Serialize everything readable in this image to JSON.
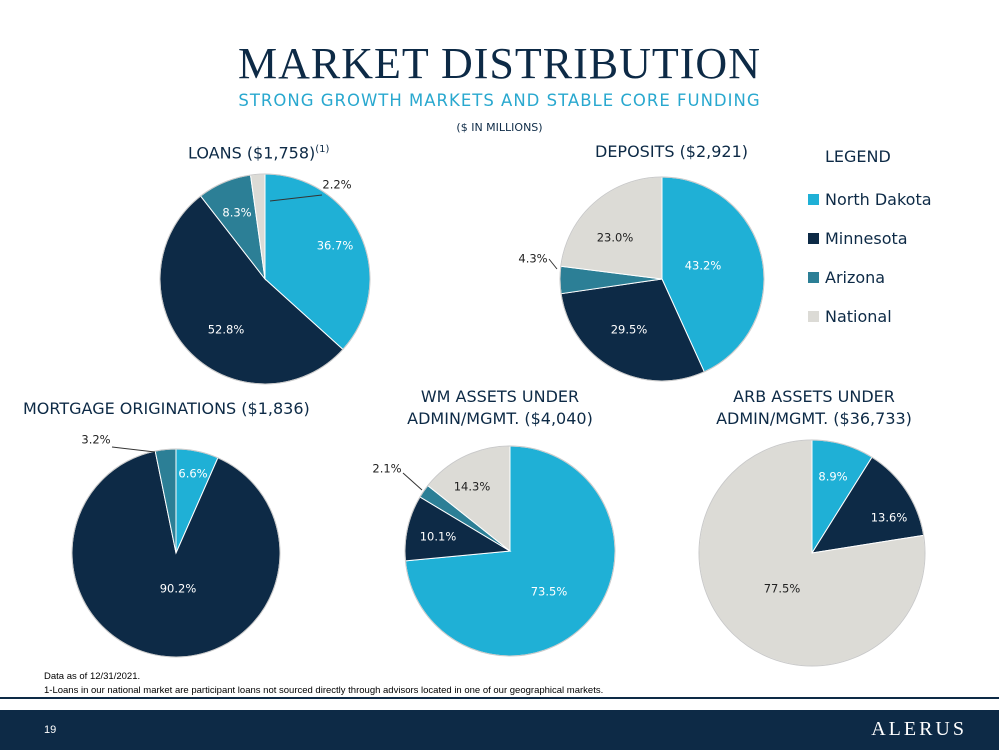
{
  "title": "MARKET DISTRIBUTION",
  "subtitle": "STRONG GROWTH MARKETS AND STABLE CORE FUNDING",
  "units": "($ IN MILLIONS)",
  "legend": {
    "title": "LEGEND",
    "items": [
      {
        "label": "North Dakota",
        "color": "#1fb0d6"
      },
      {
        "label": "Minnesota",
        "color": "#0d2a46"
      },
      {
        "label": "Arizona",
        "color": "#2c7f96"
      },
      {
        "label": "National",
        "color": "#dcdbd6"
      }
    ]
  },
  "chart_data": [
    {
      "type": "pie",
      "title": "LOANS ($1,758)",
      "title_note": "(1)",
      "categories": [
        "North Dakota",
        "Minnesota",
        "Arizona",
        "National"
      ],
      "values": [
        36.7,
        52.8,
        8.3,
        2.2
      ],
      "labels": [
        "36.7%",
        "52.8%",
        "8.3%",
        "2.2%"
      ]
    },
    {
      "type": "pie",
      "title": "DEPOSITS ($2,921)",
      "categories": [
        "North Dakota",
        "Minnesota",
        "Arizona",
        "National"
      ],
      "values": [
        43.2,
        29.5,
        4.3,
        23.0
      ],
      "labels": [
        "43.2%",
        "29.5%",
        "4.3%",
        "23.0%"
      ]
    },
    {
      "type": "pie",
      "title": "MORTGAGE ORIGINATIONS ($1,836)",
      "categories": [
        "North Dakota",
        "Minnesota",
        "Arizona"
      ],
      "values": [
        6.6,
        90.2,
        3.2
      ],
      "labels": [
        "6.6%",
        "90.2%",
        "3.2%"
      ]
    },
    {
      "type": "pie",
      "title_lines": [
        "WM ASSETS UNDER",
        "ADMIN/MGMT. ($4,040)"
      ],
      "categories": [
        "North Dakota",
        "Minnesota",
        "Arizona",
        "National"
      ],
      "values": [
        73.5,
        10.1,
        2.1,
        14.3
      ],
      "labels": [
        "73.5%",
        "10.1%",
        "2.1%",
        "14.3%"
      ]
    },
    {
      "type": "pie",
      "title_lines": [
        "ARB ASSETS UNDER",
        "ADMIN/MGMT. ($36,733)"
      ],
      "categories": [
        "North Dakota",
        "Minnesota",
        "National"
      ],
      "values": [
        8.9,
        13.6,
        77.5
      ],
      "labels": [
        "8.9%",
        "13.6%",
        "77.5%"
      ]
    }
  ],
  "footnotes": [
    "Data as of 12/31/2021.",
    "1-Loans in our national market are participant loans not sourced directly through advisors located in one of our geographical markets."
  ],
  "footer": {
    "page_number": "19",
    "logo": "ALERUS"
  }
}
